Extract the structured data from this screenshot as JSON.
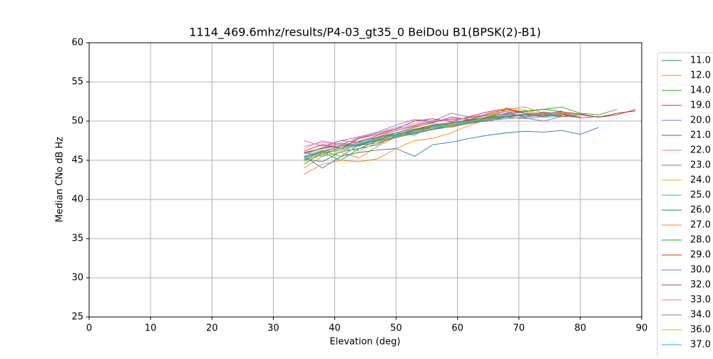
{
  "chart_data": {
    "type": "line",
    "title": "1114_469.6mhz/results/P4-03_gt35_0 BeiDou B1(BPSK(2)-B1)",
    "x_label": "Elevation (deg)",
    "y_label": "Median CNo dB Hz",
    "xlim": [
      0,
      90
    ],
    "ylim": [
      25,
      60
    ],
    "xticks": [
      0,
      10,
      20,
      30,
      40,
      50,
      60,
      70,
      80,
      90
    ],
    "yticks": [
      25,
      30,
      35,
      40,
      45,
      50,
      55,
      60
    ],
    "grid": true,
    "legend": "right",
    "x": [
      35,
      38,
      41,
      44,
      47,
      50,
      53,
      56,
      59,
      62,
      65,
      68,
      71,
      74,
      77,
      80,
      83,
      86,
      89
    ],
    "series": [
      {
        "name": "11.0",
        "color": "#1f77b4",
        "values": [
          45.2,
          44.8,
          46.1,
          46.5,
          47.0,
          48.2,
          48.5,
          49.0,
          49.3,
          49.8,
          50.2,
          50.5,
          50.8,
          50.6,
          51.0,
          50.8,
          null,
          null,
          null
        ]
      },
      {
        "name": "12.0",
        "color": "#ff7f0e",
        "values": [
          44.0,
          45.5,
          46.0,
          45.3,
          46.8,
          48.0,
          49.0,
          49.5,
          49.2,
          49.8,
          50.5,
          51.5,
          51.2,
          50.8,
          51.0,
          50.5,
          null,
          null,
          null
        ]
      },
      {
        "name": "14.0",
        "color": "#2ca02c",
        "values": [
          44.5,
          46.0,
          45.0,
          46.5,
          47.5,
          48.5,
          48.2,
          49.5,
          49.8,
          50.0,
          50.4,
          50.8,
          51.2,
          51.5,
          51.8,
          51.0,
          50.8,
          51.5,
          null
        ]
      },
      {
        "name": "19.0",
        "color": "#d62728",
        "values": [
          46.0,
          46.5,
          47.2,
          46.8,
          48.0,
          48.5,
          49.2,
          49.8,
          50.5,
          50.2,
          51.0,
          51.5,
          51.0,
          50.6,
          51.2,
          50.9,
          50.5,
          51.0,
          51.3
        ]
      },
      {
        "name": "20.0",
        "color": "#9467bd",
        "values": [
          47.5,
          46.8,
          47.5,
          48.0,
          48.6,
          49.5,
          50.2,
          50.0,
          51.0,
          50.5,
          50.8,
          51.2,
          50.4,
          50.0,
          50.6,
          50.5,
          null,
          null,
          null
        ]
      },
      {
        "name": "21.0",
        "color": "#8c564b",
        "values": [
          45.5,
          46.2,
          46.8,
          47.0,
          47.5,
          48.0,
          48.8,
          49.2,
          49.5,
          49.9,
          50.2,
          50.5,
          50.8,
          51.0,
          50.6,
          50.8,
          50.5,
          50.8,
          51.5
        ]
      },
      {
        "name": "22.0",
        "color": "#e377c2",
        "values": [
          46.5,
          47.5,
          47.0,
          47.8,
          48.5,
          49.0,
          49.5,
          50.0,
          50.3,
          50.1,
          50.6,
          51.0,
          50.5,
          51.2,
          50.8,
          null,
          null,
          null,
          null
        ]
      },
      {
        "name": "23.0",
        "color": "#7f7f7f",
        "values": [
          45.0,
          45.8,
          46.5,
          47.0,
          47.2,
          48.0,
          48.5,
          49.0,
          49.5,
          49.8,
          50.0,
          50.5,
          50.3,
          50.6,
          50.8,
          50.5,
          null,
          null,
          null
        ]
      },
      {
        "name": "24.0",
        "color": "#bcbd22",
        "values": [
          45.8,
          46.3,
          46.0,
          47.5,
          48.0,
          48.8,
          49.3,
          49.7,
          49.5,
          50.2,
          50.8,
          51.3,
          51.0,
          50.7,
          51.1,
          50.8,
          null,
          null,
          null
        ]
      },
      {
        "name": "25.0",
        "color": "#17becf",
        "values": [
          46.0,
          45.5,
          46.8,
          47.2,
          47.8,
          48.5,
          49.0,
          49.3,
          49.6,
          50.0,
          50.3,
          50.7,
          50.9,
          50.5,
          50.6,
          null,
          null,
          null,
          null
        ]
      },
      {
        "name": "26.0",
        "color": "#1f77b4",
        "values": [
          45.5,
          44.0,
          45.5,
          46.0,
          46.3,
          46.5,
          45.5,
          47.0,
          47.3,
          47.8,
          48.2,
          48.5,
          48.7,
          48.6,
          48.8,
          48.3,
          49.2,
          null,
          null
        ]
      },
      {
        "name": "27.0",
        "color": "#ff7f0e",
        "values": [
          43.2,
          44.5,
          45.0,
          44.8,
          45.2,
          46.5,
          47.5,
          47.8,
          48.5,
          49.5,
          50.2,
          51.5,
          51.8,
          51.0,
          50.5,
          null,
          null,
          null,
          null
        ]
      },
      {
        "name": "28.0",
        "color": "#2ca02c",
        "values": [
          45.0,
          46.2,
          45.5,
          47.0,
          47.6,
          48.2,
          48.8,
          49.4,
          49.7,
          50.2,
          50.5,
          51.0,
          51.3,
          51.5,
          51.2,
          null,
          null,
          null,
          null
        ]
      },
      {
        "name": "29.0",
        "color": "#d62728",
        "values": [
          46.2,
          47.0,
          46.5,
          47.8,
          48.3,
          49.0,
          50.0,
          50.3,
          49.9,
          50.6,
          51.2,
          51.6,
          51.0,
          50.8,
          51.3,
          null,
          null,
          null,
          null
        ]
      },
      {
        "name": "30.0",
        "color": "#9467bd",
        "values": [
          45.8,
          46.6,
          47.5,
          47.3,
          48.2,
          48.8,
          49.4,
          49.9,
          50.2,
          50.4,
          50.7,
          50.9,
          50.6,
          51.0,
          50.7,
          null,
          null,
          null,
          null
        ]
      },
      {
        "name": "32.0",
        "color": "#8c564b",
        "values": [
          46.0,
          46.5,
          46.9,
          47.4,
          47.9,
          48.3,
          48.9,
          49.5,
          49.8,
          50.1,
          50.4,
          50.6,
          50.8,
          51.1,
          50.9,
          50.4,
          50.6,
          null,
          null
        ]
      },
      {
        "name": "33.0",
        "color": "#e377c2",
        "values": [
          46.8,
          47.3,
          47.0,
          47.9,
          48.5,
          49.2,
          49.7,
          50.1,
          50.0,
          50.5,
          50.9,
          51.2,
          51.0,
          50.8,
          null,
          null,
          null,
          null,
          null
        ]
      },
      {
        "name": "34.0",
        "color": "#7f7f7f",
        "values": [
          45.3,
          46.0,
          46.3,
          46.9,
          47.2,
          47.9,
          48.4,
          48.9,
          49.3,
          49.7,
          50.1,
          50.3,
          50.5,
          50.8,
          50.6,
          null,
          null,
          null,
          null
        ]
      },
      {
        "name": "36.0",
        "color": "#bcbd22",
        "values": [
          44.8,
          45.7,
          46.5,
          46.2,
          47.3,
          48.1,
          48.7,
          49.1,
          49.6,
          49.9,
          50.6,
          51.7,
          51.4,
          50.9,
          51.0,
          null,
          null,
          null,
          null
        ]
      },
      {
        "name": "37.0",
        "color": "#17becf",
        "values": [
          45.4,
          46.1,
          46.6,
          47.1,
          47.7,
          48.3,
          48.6,
          49.2,
          49.4,
          49.9,
          50.2,
          50.6,
          50.9,
          51.0,
          50.7,
          null,
          null,
          null,
          null
        ]
      }
    ]
  }
}
